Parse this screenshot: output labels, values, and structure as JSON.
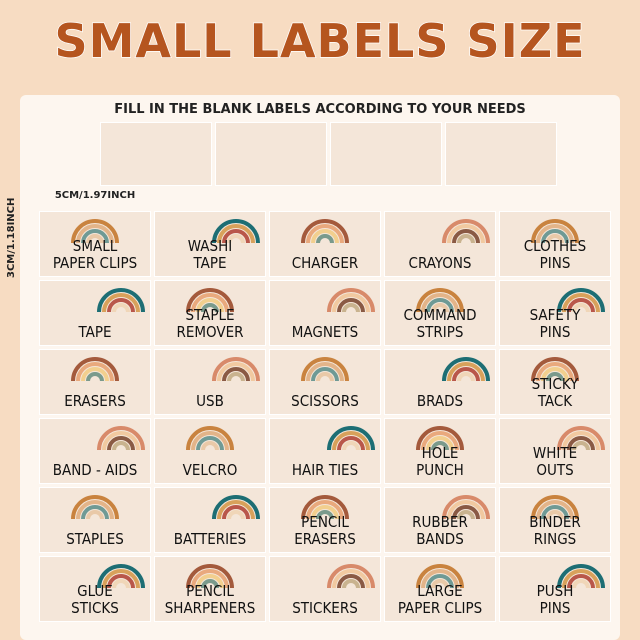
{
  "header": {
    "title": "SMALL LABELS SIZE",
    "subtitle": "FILL IN THE BLANK LABELS ACCORDING TO YOUR NEEDS"
  },
  "dimensions": {
    "width": "5CM/1.97INCH",
    "height": "3CM/1.18INCH"
  },
  "labels": [
    [
      [
        "SMALL",
        "PAPER CLIPS"
      ],
      [
        "WASHI",
        "TAPE"
      ],
      [
        "CHARGER"
      ],
      [
        "CRAYONS"
      ],
      [
        "CLOTHES",
        "PINS"
      ]
    ],
    [
      [
        "TAPE"
      ],
      [
        "STAPLE",
        "REMOVER"
      ],
      [
        "MAGNETS"
      ],
      [
        "COMMAND",
        "STRIPS"
      ],
      [
        "SAFETY",
        "PINS"
      ]
    ],
    [
      [
        "ERASERS"
      ],
      [
        "USB"
      ],
      [
        "SCISSORS"
      ],
      [
        "BRADS"
      ],
      [
        "STICKY",
        "TACK"
      ]
    ],
    [
      [
        "BAND - AIDS"
      ],
      [
        "VELCRO"
      ],
      [
        "HAIR TIES"
      ],
      [
        "HOLE",
        "PUNCH"
      ],
      [
        "WHITE",
        "OUTS"
      ]
    ],
    [
      [
        "STAPLES"
      ],
      [
        "BATTERIES"
      ],
      [
        "PENCIL",
        "ERASERS"
      ],
      [
        "RUBBER",
        "BANDS"
      ],
      [
        "BINDER",
        "RINGS"
      ]
    ],
    [
      [
        "GLUE",
        "STICKS"
      ],
      [
        "PENCIL",
        "SHARPENERS"
      ],
      [
        "STICKERS"
      ],
      [
        "LARGE",
        "PAPER CLIPS"
      ],
      [
        "PUSH",
        "PINS"
      ]
    ]
  ]
}
